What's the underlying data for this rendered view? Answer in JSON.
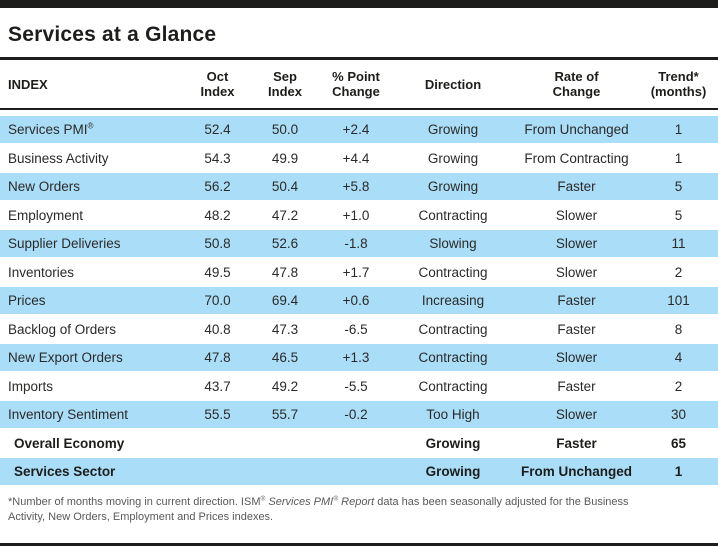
{
  "title": "Services at a Glance",
  "reg_mark": "®",
  "colors": {
    "row_highlight": "#aaddf8",
    "bar_black": "#1d1d1b",
    "footnote_gray": "#58595b"
  },
  "table": {
    "columns": [
      {
        "id": "index",
        "lines": [
          "INDEX"
        ]
      },
      {
        "id": "oct-index",
        "lines": [
          "Oct",
          "Index"
        ]
      },
      {
        "id": "sep-index",
        "lines": [
          "Sep",
          "Index"
        ]
      },
      {
        "id": "point-change",
        "lines": [
          "% Point",
          "Change"
        ]
      },
      {
        "id": "direction",
        "lines": [
          "Direction"
        ]
      },
      {
        "id": "rate-of-change",
        "lines": [
          "Rate of",
          "Change"
        ]
      },
      {
        "id": "trend-months",
        "lines": [
          "Trend*",
          "(months)"
        ]
      }
    ],
    "rows": [
      {
        "label": "Services PMI",
        "sup": true,
        "oct": "52.4",
        "sep": "50.0",
        "change": "+2.4",
        "direction": "Growing",
        "rate": "From Unchanged",
        "trend": "1"
      },
      {
        "label": "Business Activity",
        "oct": "54.3",
        "sep": "49.9",
        "change": "+4.4",
        "direction": "Growing",
        "rate": "From Contracting",
        "trend": "1"
      },
      {
        "label": "New Orders",
        "oct": "56.2",
        "sep": "50.4",
        "change": "+5.8",
        "direction": "Growing",
        "rate": "Faster",
        "trend": "5"
      },
      {
        "label": "Employment",
        "oct": "48.2",
        "sep": "47.2",
        "change": "+1.0",
        "direction": "Contracting",
        "rate": "Slower",
        "trend": "5"
      },
      {
        "label": "Supplier Deliveries",
        "oct": "50.8",
        "sep": "52.6",
        "change": "-1.8",
        "direction": "Slowing",
        "rate": "Slower",
        "trend": "11"
      },
      {
        "label": "Inventories",
        "oct": "49.5",
        "sep": "47.8",
        "change": "+1.7",
        "direction": "Contracting",
        "rate": "Slower",
        "trend": "2"
      },
      {
        "label": "Prices",
        "oct": "70.0",
        "sep": "69.4",
        "change": "+0.6",
        "direction": "Increasing",
        "rate": "Faster",
        "trend": "101"
      },
      {
        "label": "Backlog of Orders",
        "oct": "40.8",
        "sep": "47.3",
        "change": "-6.5",
        "direction": "Contracting",
        "rate": "Faster",
        "trend": "8"
      },
      {
        "label": "New Export Orders",
        "oct": "47.8",
        "sep": "46.5",
        "change": "+1.3",
        "direction": "Contracting",
        "rate": "Slower",
        "trend": "4"
      },
      {
        "label": "Imports",
        "oct": "43.7",
        "sep": "49.2",
        "change": "-5.5",
        "direction": "Contracting",
        "rate": "Faster",
        "trend": "2"
      },
      {
        "label": "Inventory Sentiment",
        "oct": "55.5",
        "sep": "55.7",
        "change": "-0.2",
        "direction": "Too High",
        "rate": "Slower",
        "trend": "30"
      },
      {
        "label": "Overall Economy",
        "bold": true,
        "oct": "",
        "sep": "",
        "change": "",
        "direction": "Growing",
        "rate": "Faster",
        "trend": "65"
      },
      {
        "label": "Services Sector",
        "bold": true,
        "oct": "",
        "sep": "",
        "change": "",
        "direction": "Growing",
        "rate": "From Unchanged",
        "trend": "1"
      }
    ]
  },
  "footnote": {
    "parts": [
      {
        "text": "*Number of months moving in current direction. ISM"
      },
      {
        "text": "®",
        "sup": true
      },
      {
        "text": " "
      },
      {
        "text": "Services PMI",
        "italic": true
      },
      {
        "text": "®",
        "sup": true,
        "italic": true
      },
      {
        "text": " Report",
        "italic": true
      },
      {
        "text": " data has been seasonally adjusted for the Business Activity, New Orders, Employment and Prices indexes."
      }
    ]
  }
}
